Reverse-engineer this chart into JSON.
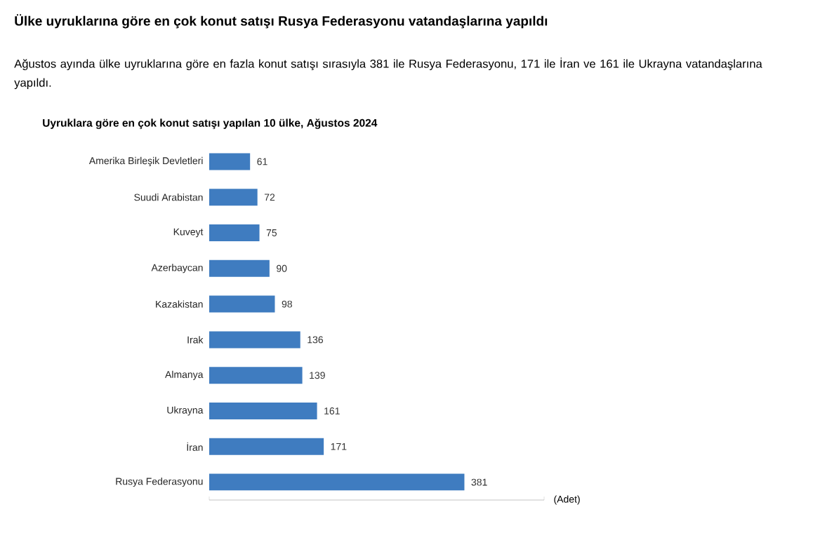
{
  "chart_data": {
    "type": "bar",
    "orientation": "horizontal",
    "title": "Ülke uyruklarına göre en çok konut satışı Rusya Federasyonu vatandaşlarına yapıldı",
    "subtitle": "Ağustos ayında ülke uyruklarına göre en fazla konut satışı sırasıyla 381 ile Rusya Federasyonu, 171 ile İran ve 161 ile Ukrayna vatandaşlarına yapıldı.",
    "annotations": [
      "Uyruklara göre en çok konut satışı yapılan 10 ülke, Ağustos 2024"
    ],
    "categories": [
      "Amerika Birleşik Devletleri",
      "Suudi Arabistan",
      "Kuveyt",
      "Azerbaycan",
      "Kazakistan",
      "Irak",
      "Almanya",
      "Ukrayna",
      "İran",
      "Rusya Federasyonu"
    ],
    "values": [
      61,
      72,
      75,
      90,
      98,
      136,
      139,
      161,
      171,
      381
    ],
    "color": "#3f7cc0",
    "data_labels": true,
    "xlabel": "(Adet)",
    "xlim": [
      0,
      500
    ],
    "xticks": [
      {
        "value": 0,
        "label": null
      },
      {
        "value": 500,
        "label": null
      }
    ],
    "tick_labels": "y",
    "grid": false
  }
}
